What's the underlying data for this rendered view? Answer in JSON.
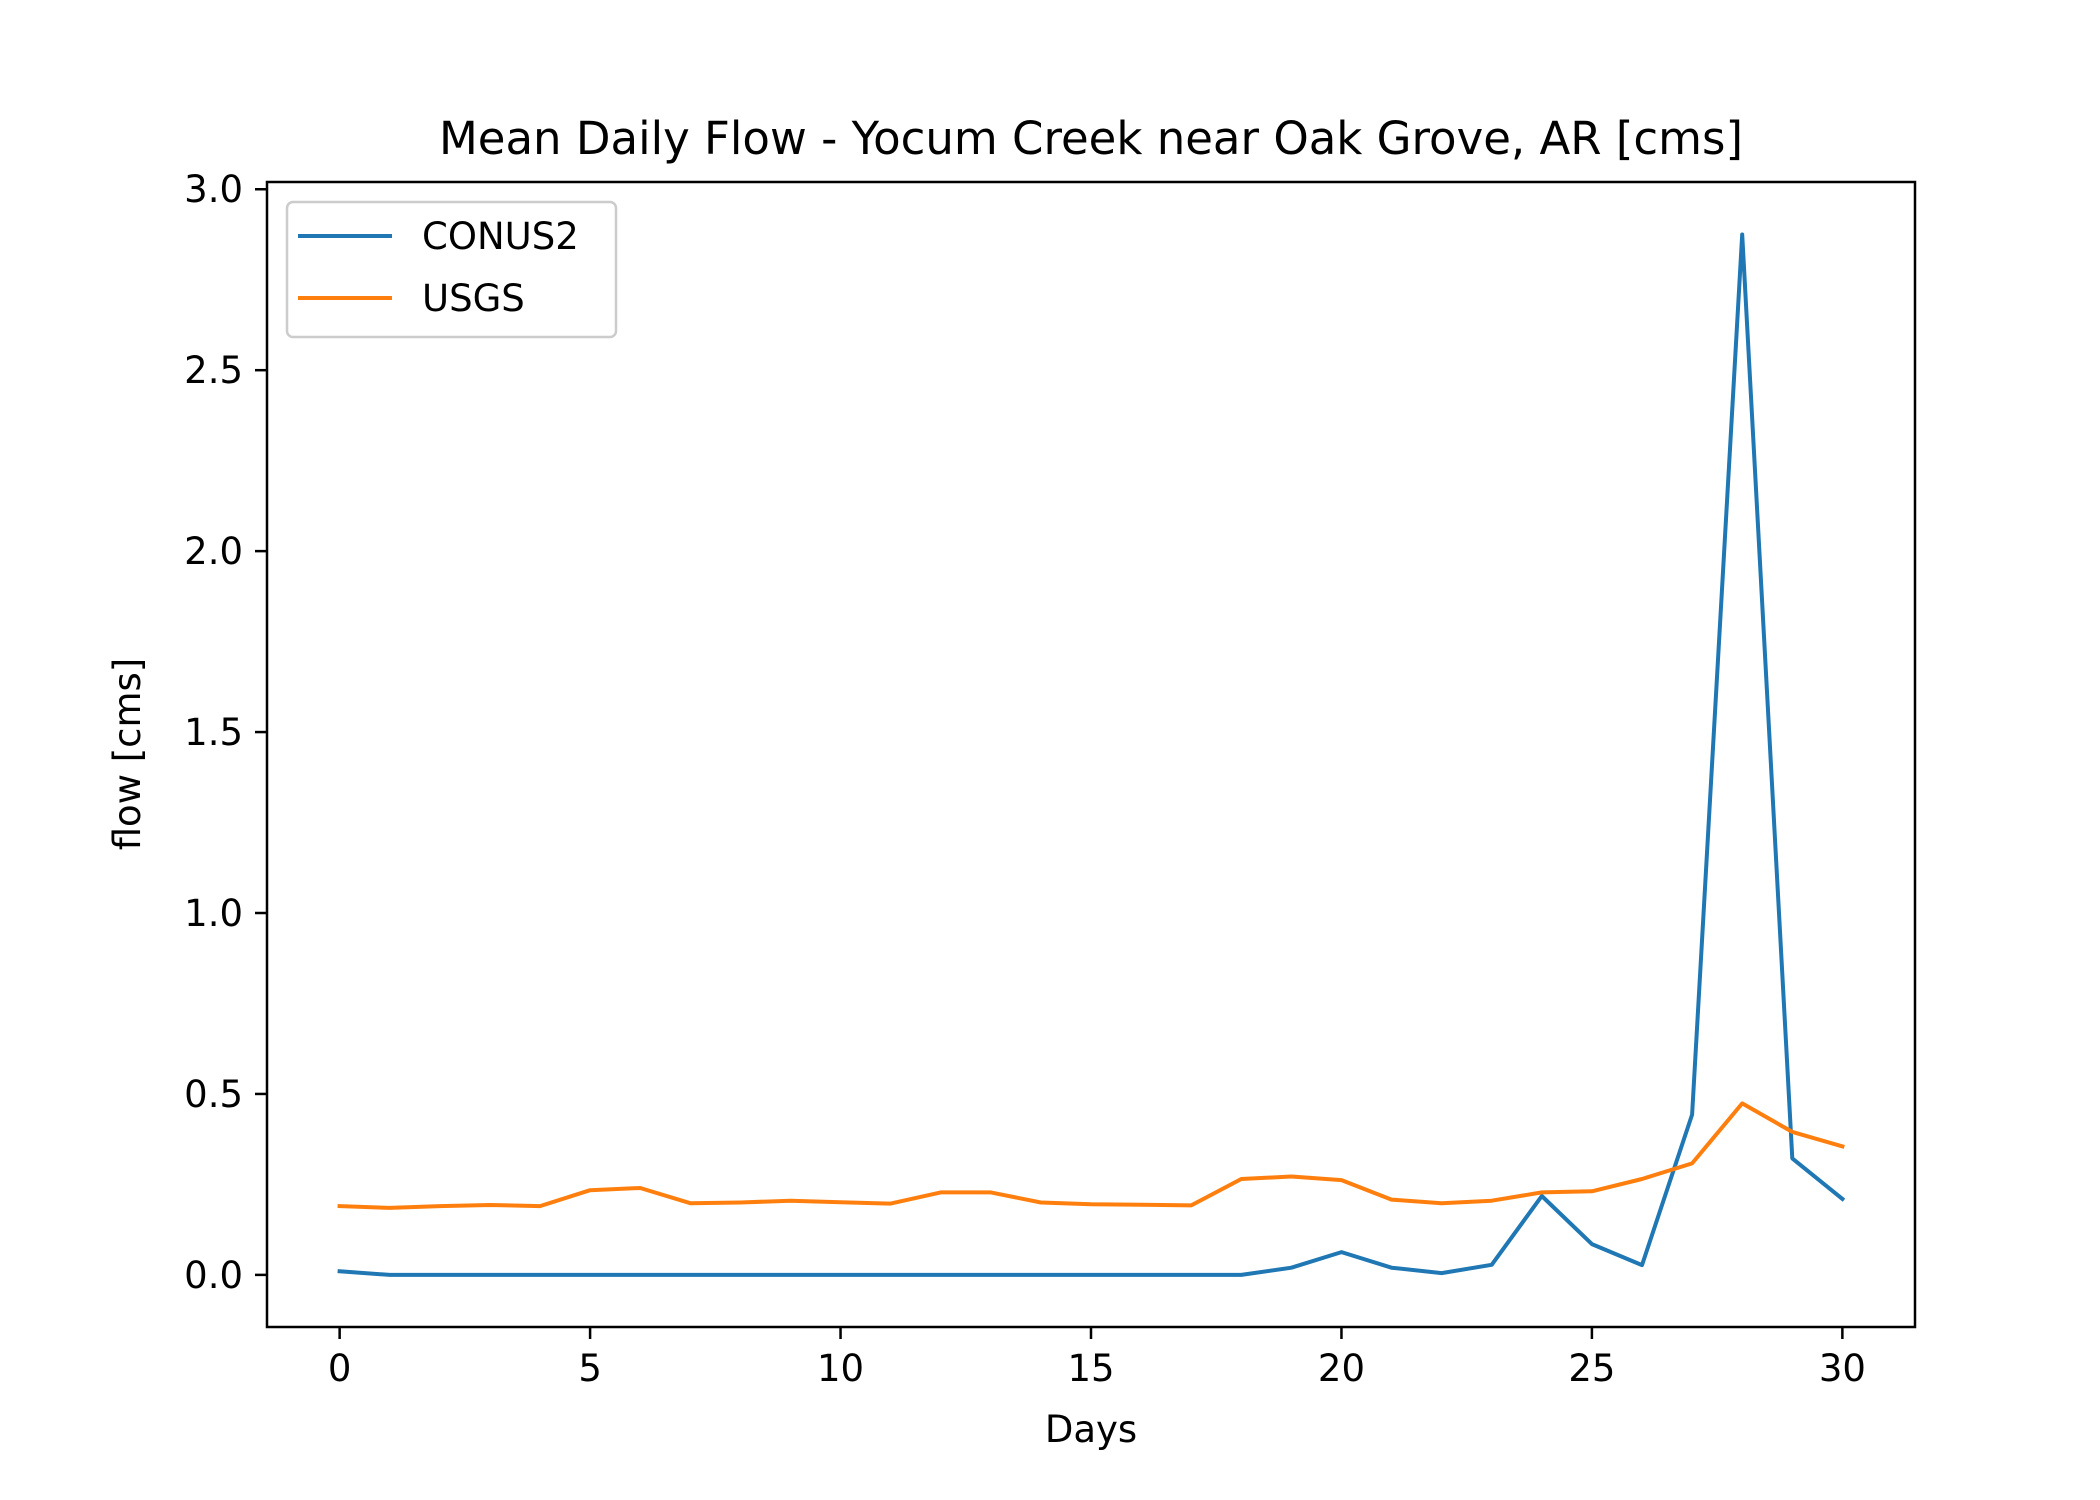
{
  "chart_data": {
    "type": "line",
    "title": "Mean Daily Flow - Yocum Creek near Oak Grove, AR [cms]",
    "xlabel": "Days",
    "ylabel": "flow [cms]",
    "xlim": [
      -1.45,
      31.45
    ],
    "ylim": [
      -0.144,
      3.02
    ],
    "xticks": [
      0,
      5,
      10,
      15,
      20,
      25,
      30
    ],
    "xtick_labels": [
      "0",
      "5",
      "10",
      "15",
      "20",
      "25",
      "30"
    ],
    "yticks": [
      0.0,
      0.5,
      1.0,
      1.5,
      2.0,
      2.5,
      3.0
    ],
    "ytick_labels": [
      "0.0",
      "0.5",
      "1.0",
      "1.5",
      "2.0",
      "2.5",
      "3.0"
    ],
    "grid": false,
    "legend_position": "top-left",
    "x": [
      0,
      1,
      2,
      3,
      4,
      5,
      6,
      7,
      8,
      9,
      10,
      11,
      12,
      13,
      14,
      15,
      16,
      17,
      18,
      19,
      20,
      21,
      22,
      23,
      24,
      25,
      26,
      27,
      28,
      29,
      30
    ],
    "series": [
      {
        "name": "CONUS2",
        "color": "#1f77b4",
        "values": [
          0.01,
          0.0,
          0.0,
          0.0,
          0.0,
          0.0,
          0.0,
          0.0,
          0.0,
          0.0,
          0.0,
          0.0,
          0.0,
          0.0,
          0.0,
          0.0,
          0.0,
          0.0,
          0.0,
          0.02,
          0.063,
          0.02,
          0.005,
          0.028,
          0.218,
          0.085,
          0.027,
          0.443,
          2.875,
          0.322,
          0.21
        ]
      },
      {
        "name": "USGS",
        "color": "#ff7f0e",
        "values": [
          0.19,
          0.185,
          0.19,
          0.193,
          0.19,
          0.234,
          0.24,
          0.198,
          0.2,
          0.205,
          0.201,
          0.197,
          0.228,
          0.228,
          0.2,
          0.195,
          0.194,
          0.192,
          0.265,
          0.272,
          0.262,
          0.208,
          0.198,
          0.205,
          0.228,
          0.231,
          0.265,
          0.308,
          0.474,
          0.395,
          0.355
        ]
      }
    ]
  }
}
